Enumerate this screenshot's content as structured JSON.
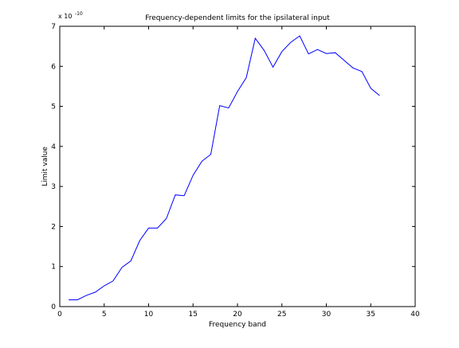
{
  "chart_data": {
    "type": "line",
    "title": "Frequency-dependent limits for the ipsilateral input",
    "xlabel": "Frequency band",
    "ylabel": "Limit value",
    "y_scale_label": "x 10",
    "y_scale_exponent": "-10",
    "xlim": [
      0,
      40
    ],
    "ylim": [
      0,
      7
    ],
    "xticks": [
      0,
      5,
      10,
      15,
      20,
      25,
      30,
      35,
      40
    ],
    "yticks": [
      0,
      1,
      2,
      3,
      4,
      5,
      6,
      7
    ],
    "grid": false,
    "line_color": "#0000ff",
    "series": [
      {
        "x": [
          1,
          2,
          3,
          4,
          5,
          6,
          7,
          8,
          9,
          10,
          11,
          12,
          13,
          14,
          15,
          16,
          17,
          18,
          19,
          20,
          21,
          22,
          23,
          24,
          25,
          26,
          27,
          28,
          29,
          30,
          31,
          32,
          33,
          34,
          35,
          36
        ],
        "values": [
          0.17,
          0.17,
          0.28,
          0.36,
          0.52,
          0.64,
          0.98,
          1.14,
          1.65,
          1.96,
          1.96,
          2.2,
          2.79,
          2.77,
          3.28,
          3.63,
          3.8,
          5.02,
          4.96,
          5.37,
          5.72,
          6.7,
          6.4,
          5.98,
          6.37,
          6.6,
          6.76,
          6.31,
          6.42,
          6.32,
          6.34,
          6.15,
          5.96,
          5.87,
          5.45,
          5.27
        ]
      }
    ]
  }
}
